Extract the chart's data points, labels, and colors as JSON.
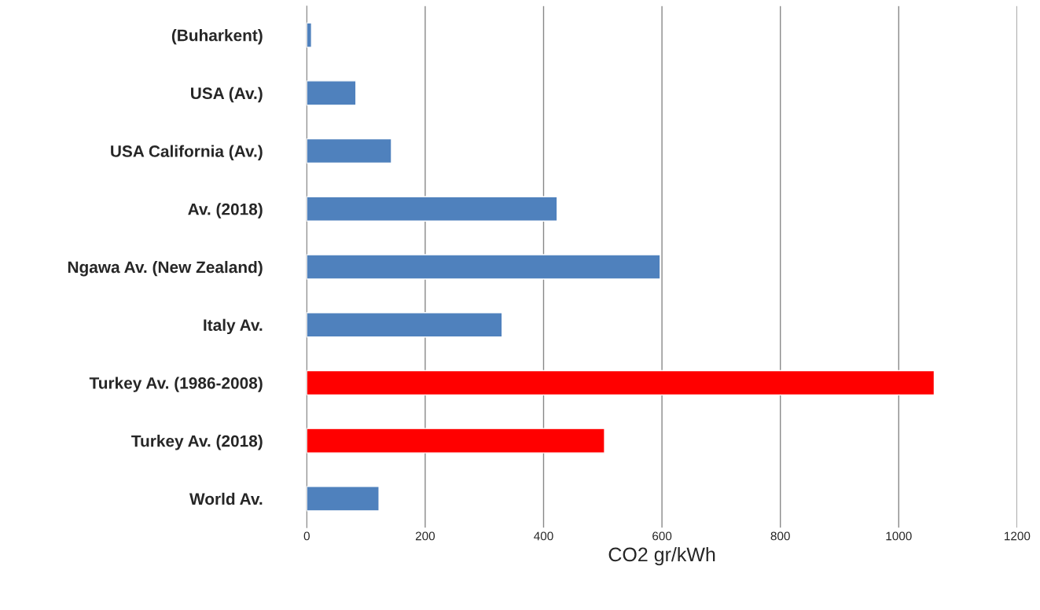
{
  "chart_data": {
    "type": "bar",
    "orientation": "horizontal",
    "xlabel": "CO2 gr/kWh",
    "categories": [
      "(Buharkent)",
      "USA (Av.)",
      "USA California (Av.)",
      "Av. (2018)",
      "Ngawa Av. (New Zealand)",
      "Italy Av.",
      "Turkey Av. (1986-2008)",
      "Turkey Av. (2018)",
      "World Av."
    ],
    "values": [
      8,
      83,
      143,
      423,
      597,
      330,
      1060,
      503,
      122
    ],
    "colors": [
      "#4f81bd",
      "#4f81bd",
      "#4f81bd",
      "#4f81bd",
      "#4f81bd",
      "#4f81bd",
      "#ff0000",
      "#ff0000",
      "#4f81bd"
    ],
    "xlim": [
      0,
      1200
    ],
    "xticks": [
      0,
      200,
      400,
      600,
      800,
      1000,
      1200
    ],
    "grid": "x"
  }
}
